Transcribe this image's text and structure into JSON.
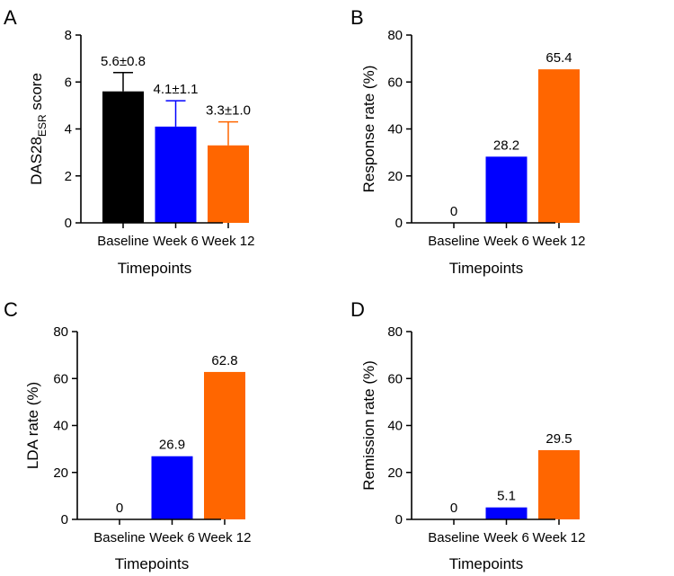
{
  "colors": {
    "baseline": "#000000",
    "week6": "#0000ff",
    "week12": "#ff6600"
  },
  "chart_data": [
    {
      "panel": "A",
      "type": "bar",
      "categories": [
        "Baseline",
        "Week 6",
        "Week 12"
      ],
      "values": [
        5.6,
        4.1,
        3.3
      ],
      "errors": [
        0.8,
        1.1,
        1.0
      ],
      "data_labels": [
        "5.6±0.8",
        "4.1±1.1",
        "3.3±1.0"
      ],
      "xlabel": "Timepoints",
      "ylabel_main": "DAS28",
      "ylabel_sub": "ESR",
      "ylabel_tail": " score",
      "ylim": [
        0,
        8
      ],
      "yticks": [
        0,
        2,
        4,
        6,
        8
      ]
    },
    {
      "panel": "B",
      "type": "bar",
      "categories": [
        "Baseline",
        "Week 6",
        "Week 12"
      ],
      "values": [
        0,
        28.2,
        65.4
      ],
      "data_labels": [
        "0",
        "28.2",
        "65.4"
      ],
      "xlabel": "Timepoints",
      "ylabel": "Response rate (%)",
      "ylim": [
        0,
        80
      ],
      "yticks": [
        0,
        20,
        40,
        60,
        80
      ]
    },
    {
      "panel": "C",
      "type": "bar",
      "categories": [
        "Baseline",
        "Week 6",
        "Week 12"
      ],
      "values": [
        0,
        26.9,
        62.8
      ],
      "data_labels": [
        "0",
        "26.9",
        "62.8"
      ],
      "xlabel": "Timepoints",
      "ylabel": "LDA rate (%)",
      "ylim": [
        0,
        80
      ],
      "yticks": [
        0,
        20,
        40,
        60,
        80
      ]
    },
    {
      "panel": "D",
      "type": "bar",
      "categories": [
        "Baseline",
        "Week 6",
        "Week 12"
      ],
      "values": [
        0,
        5.1,
        29.5
      ],
      "data_labels": [
        "0",
        "5.1",
        "29.5"
      ],
      "xlabel": "Timepoints",
      "ylabel": "Remission rate (%)",
      "ylim": [
        0,
        80
      ],
      "yticks": [
        0,
        20,
        40,
        60,
        80
      ]
    }
  ]
}
